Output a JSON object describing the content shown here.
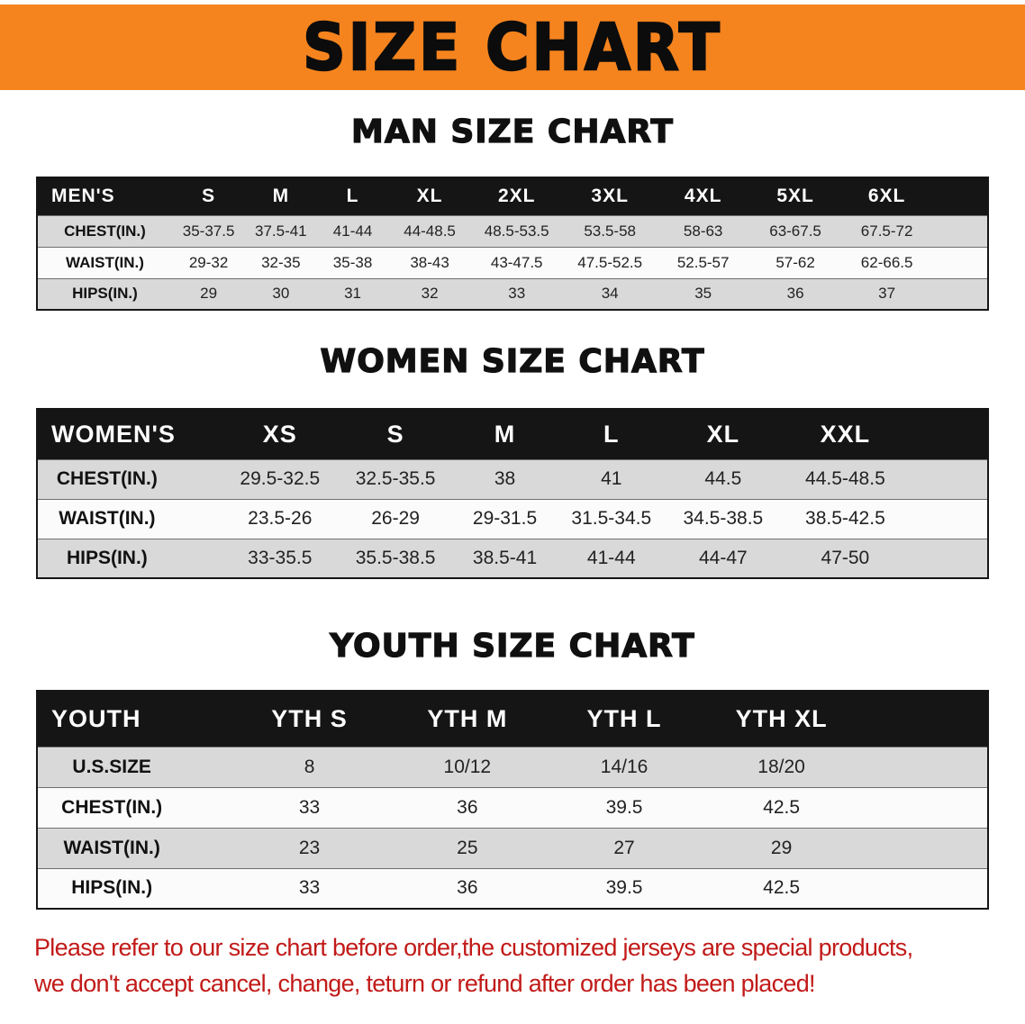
{
  "banner": {
    "title": "SIZE CHART"
  },
  "sections": [
    {
      "heading": "MAN SIZE CHART",
      "table": {
        "header": [
          "MEN'S",
          "S",
          "M",
          "L",
          "XL",
          "2XL",
          "3XL",
          "4XL",
          "5XL",
          "6XL"
        ],
        "rows": [
          [
            "CHEST(IN.)",
            "35-37.5",
            "37.5-41",
            "41-44",
            "44-48.5",
            "48.5-53.5",
            "53.5-58",
            "58-63",
            "63-67.5",
            "67.5-72"
          ],
          [
            "WAIST(IN.)",
            "29-32",
            "32-35",
            "35-38",
            "38-43",
            "43-47.5",
            "47.5-52.5",
            "52.5-57",
            "57-62",
            "62-66.5"
          ],
          [
            "HIPS(IN.)",
            "29",
            "30",
            "31",
            "32",
            "33",
            "34",
            "35",
            "36",
            "37"
          ]
        ]
      }
    },
    {
      "heading": "WOMEN SIZE CHART",
      "table": {
        "header": [
          "WOMEN'S",
          "XS",
          "S",
          "M",
          "L",
          "XL",
          "XXL"
        ],
        "rows": [
          [
            "CHEST(IN.)",
            "29.5-32.5",
            "32.5-35.5",
            "38",
            "41",
            "44.5",
            "44.5-48.5"
          ],
          [
            "WAIST(IN.)",
            "23.5-26",
            "26-29",
            "29-31.5",
            "31.5-34.5",
            "34.5-38.5",
            "38.5-42.5"
          ],
          [
            "HIPS(IN.)",
            "33-35.5",
            "35.5-38.5",
            "38.5-41",
            "41-44",
            "44-47",
            "47-50"
          ]
        ]
      }
    },
    {
      "heading": "YOUTH SIZE CHART",
      "table": {
        "header": [
          "YOUTH",
          "YTH S",
          "YTH M",
          "YTH L",
          "YTH XL"
        ],
        "rows": [
          [
            "U.S.SIZE",
            "8",
            "10/12",
            "14/16",
            "18/20"
          ],
          [
            "CHEST(IN.)",
            "33",
            "36",
            "39.5",
            "42.5"
          ],
          [
            "WAIST(IN.)",
            "23",
            "25",
            "27",
            "29"
          ],
          [
            "HIPS(IN.)",
            "33",
            "36",
            "39.5",
            "42.5"
          ]
        ]
      }
    }
  ],
  "notice": {
    "lines": [
      "Please refer to our size chart before order,the customized jerseys are special products,",
      "we don't accept cancel, change, teturn or refund after order has been placed!"
    ]
  },
  "colors": {
    "banner_bg": "#F6841E",
    "table_header_bg": "#151515",
    "row_stripe": "#D9D9D9",
    "notice_text": "#C11A18"
  }
}
